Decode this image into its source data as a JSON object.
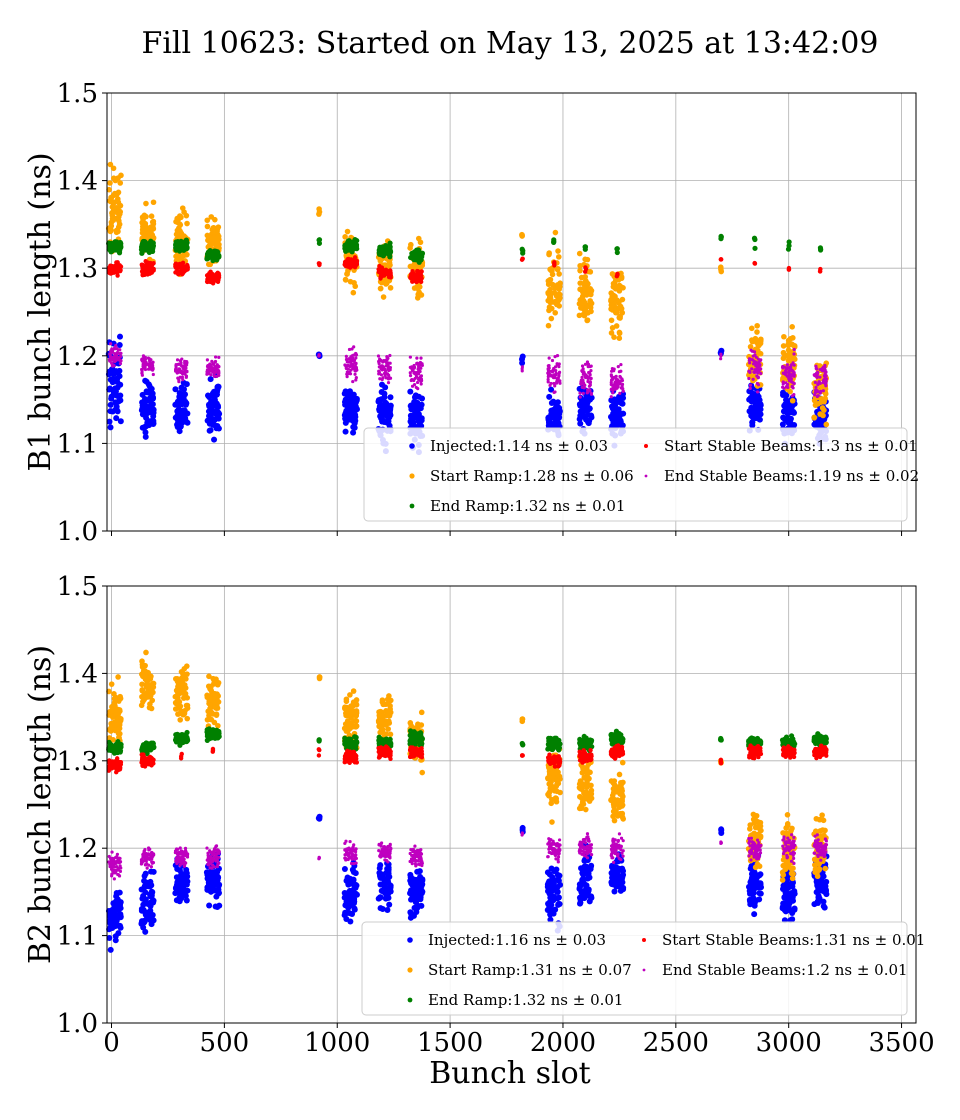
{
  "title": "Fill 10623: Started on May 13, 2025 at 13:42:09",
  "xlabel": "Bunch slot",
  "colors": {
    "injected": "#0000ff",
    "start_ramp": "#ffa500",
    "end_ramp": "#008000",
    "start_stable": "#ff0000",
    "end_stable": "#bf00bf",
    "grid": "#b0b0b0",
    "axis": "#000000"
  },
  "chart_data": [
    {
      "type": "scatter",
      "ylabel": "B1 bunch length (ns)",
      "xlim": [
        -20,
        3564
      ],
      "ylim": [
        1.0,
        1.5
      ],
      "xticks": [
        0,
        500,
        1000,
        1500,
        2000,
        2500,
        3000,
        3500
      ],
      "yticks": [
        1.0,
        1.1,
        1.2,
        1.3,
        1.4,
        1.5
      ],
      "show_xtick_labels": false,
      "grid": true,
      "legend_position": "lower right",
      "series": [
        {
          "name": "Injected",
          "legend": "Injected:1.14 ns ± 0.03",
          "key": "injected",
          "size": 3.0,
          "groups": [
            [
              15,
              1.17,
              0.05
            ],
            [
              160,
              1.14,
              0.03
            ],
            [
              310,
              1.14,
              0.03
            ],
            [
              450,
              1.14,
              0.03
            ],
            [
              920,
              1.2,
              0.005
            ],
            [
              1060,
              1.14,
              0.025
            ],
            [
              1210,
              1.13,
              0.03
            ],
            [
              1350,
              1.13,
              0.03
            ],
            [
              1820,
              1.195,
              0.005
            ],
            [
              1960,
              1.13,
              0.025
            ],
            [
              2100,
              1.14,
              0.025
            ],
            [
              2240,
              1.13,
              0.025
            ],
            [
              2700,
              1.205,
              0.005
            ],
            [
              2850,
              1.14,
              0.025
            ],
            [
              3000,
              1.13,
              0.025
            ],
            [
              3140,
              1.13,
              0.025
            ]
          ]
        },
        {
          "name": "Start Ramp",
          "legend": "Start Ramp:1.28 ns ± 0.06",
          "key": "start_ramp",
          "size": 2.8,
          "groups": [
            [
              15,
              1.37,
              0.04
            ],
            [
              160,
              1.34,
              0.03
            ],
            [
              310,
              1.33,
              0.03
            ],
            [
              450,
              1.33,
              0.025
            ],
            [
              920,
              1.365,
              0.005
            ],
            [
              1060,
              1.31,
              0.025
            ],
            [
              1210,
              1.3,
              0.025
            ],
            [
              1350,
              1.3,
              0.03
            ],
            [
              1820,
              1.34,
              0.005
            ],
            [
              1960,
              1.28,
              0.04
            ],
            [
              2100,
              1.27,
              0.04
            ],
            [
              2240,
              1.26,
              0.04
            ],
            [
              2700,
              1.3,
              0.005
            ],
            [
              2850,
              1.2,
              0.03
            ],
            [
              3000,
              1.19,
              0.035
            ],
            [
              3140,
              1.16,
              0.03
            ]
          ]
        },
        {
          "name": "End Ramp",
          "legend": "End Ramp:1.32 ns ± 0.01",
          "key": "end_ramp",
          "size": 2.6,
          "groups": [
            [
              15,
              1.325,
              0.006
            ],
            [
              160,
              1.325,
              0.006
            ],
            [
              310,
              1.325,
              0.006
            ],
            [
              450,
              1.315,
              0.006
            ],
            [
              920,
              1.33,
              0.003
            ],
            [
              1060,
              1.325,
              0.006
            ],
            [
              1210,
              1.32,
              0.006
            ],
            [
              1350,
              1.315,
              0.006
            ],
            [
              1820,
              1.32,
              0.003
            ],
            [
              1960,
              1.33,
              0.005
            ],
            [
              2100,
              1.325,
              0.005
            ],
            [
              2240,
              1.32,
              0.005
            ],
            [
              2700,
              1.335,
              0.003
            ],
            [
              2850,
              1.33,
              0.005
            ],
            [
              3000,
              1.325,
              0.005
            ],
            [
              3140,
              1.32,
              0.005
            ]
          ]
        },
        {
          "name": "Start Stable Beams",
          "legend": "Start Stable Beams:1.3 ns ± 0.01",
          "key": "start_stable",
          "size": 2.2,
          "groups": [
            [
              15,
              1.3,
              0.006
            ],
            [
              160,
              1.3,
              0.007
            ],
            [
              310,
              1.3,
              0.006
            ],
            [
              450,
              1.29,
              0.006
            ],
            [
              920,
              1.305,
              0.003
            ],
            [
              1060,
              1.305,
              0.006
            ],
            [
              1210,
              1.295,
              0.006
            ],
            [
              1350,
              1.29,
              0.006
            ],
            [
              1820,
              1.31,
              0.003
            ],
            [
              1960,
              1.305,
              0.005
            ],
            [
              2100,
              1.3,
              0.005
            ],
            [
              2240,
              1.29,
              0.005
            ],
            [
              2700,
              1.31,
              0.003
            ],
            [
              2850,
              1.305,
              0.005
            ],
            [
              3000,
              1.3,
              0.005
            ],
            [
              3140,
              1.295,
              0.005
            ]
          ]
        },
        {
          "name": "End Stable Beams",
          "legend": "End Stable Beams:1.19 ns ± 0.02",
          "key": "end_stable",
          "size": 1.6,
          "groups": [
            [
              15,
              1.2,
              0.01
            ],
            [
              160,
              1.19,
              0.012
            ],
            [
              310,
              1.185,
              0.012
            ],
            [
              450,
              1.185,
              0.012
            ],
            [
              920,
              1.2,
              0.003
            ],
            [
              1060,
              1.19,
              0.015
            ],
            [
              1210,
              1.185,
              0.015
            ],
            [
              1350,
              1.18,
              0.015
            ],
            [
              1820,
              1.185,
              0.003
            ],
            [
              1960,
              1.18,
              0.02
            ],
            [
              2100,
              1.175,
              0.02
            ],
            [
              2240,
              1.17,
              0.02
            ],
            [
              2700,
              1.2,
              0.003
            ],
            [
              2850,
              1.185,
              0.02
            ],
            [
              3000,
              1.18,
              0.02
            ],
            [
              3140,
              1.175,
              0.02
            ]
          ]
        }
      ]
    },
    {
      "type": "scatter",
      "ylabel": "B2 bunch length (ns)",
      "xlim": [
        -20,
        3564
      ],
      "ylim": [
        1.0,
        1.5
      ],
      "xticks": [
        0,
        500,
        1000,
        1500,
        2000,
        2500,
        3000,
        3500
      ],
      "xtick_labels": [
        "0",
        "500",
        "1000",
        "1500",
        "2000",
        "2500",
        "3000",
        "3500"
      ],
      "yticks": [
        1.0,
        1.1,
        1.2,
        1.3,
        1.4,
        1.5
      ],
      "show_xtick_labels": true,
      "grid": true,
      "legend_position": "lower right",
      "series": [
        {
          "name": "Injected",
          "legend": "Injected:1.16 ns ± 0.03",
          "key": "injected",
          "size": 3.0,
          "groups": [
            [
              15,
              1.12,
              0.03
            ],
            [
              160,
              1.14,
              0.03
            ],
            [
              310,
              1.16,
              0.025
            ],
            [
              450,
              1.16,
              0.03
            ],
            [
              920,
              1.235,
              0.003
            ],
            [
              1060,
              1.15,
              0.03
            ],
            [
              1210,
              1.16,
              0.03
            ],
            [
              1350,
              1.15,
              0.03
            ],
            [
              1820,
              1.22,
              0.004
            ],
            [
              1960,
              1.15,
              0.03
            ],
            [
              2100,
              1.16,
              0.03
            ],
            [
              2240,
              1.17,
              0.025
            ],
            [
              2700,
              1.22,
              0.003
            ],
            [
              2850,
              1.16,
              0.03
            ],
            [
              3000,
              1.15,
              0.03
            ],
            [
              3140,
              1.16,
              0.03
            ]
          ]
        },
        {
          "name": "Start Ramp",
          "legend": "Start Ramp:1.31 ns ± 0.07",
          "key": "start_ramp",
          "size": 2.8,
          "groups": [
            [
              15,
              1.35,
              0.03
            ],
            [
              160,
              1.39,
              0.03
            ],
            [
              310,
              1.38,
              0.03
            ],
            [
              450,
              1.37,
              0.03
            ],
            [
              920,
              1.395,
              0.003
            ],
            [
              1060,
              1.35,
              0.03
            ],
            [
              1210,
              1.35,
              0.025
            ],
            [
              1350,
              1.32,
              0.03
            ],
            [
              1820,
              1.345,
              0.004
            ],
            [
              1960,
              1.28,
              0.04
            ],
            [
              2100,
              1.27,
              0.03
            ],
            [
              2240,
              1.26,
              0.03
            ],
            [
              2700,
              1.3,
              0.003
            ],
            [
              2850,
              1.21,
              0.03
            ],
            [
              3000,
              1.2,
              0.03
            ],
            [
              3140,
              1.2,
              0.03
            ]
          ]
        },
        {
          "name": "End Ramp",
          "legend": "End Ramp:1.32 ns ± 0.01",
          "key": "end_ramp",
          "size": 2.6,
          "groups": [
            [
              15,
              1.315,
              0.006
            ],
            [
              160,
              1.315,
              0.006
            ],
            [
              310,
              1.325,
              0.006
            ],
            [
              450,
              1.33,
              0.006
            ],
            [
              920,
              1.325,
              0.003
            ],
            [
              1060,
              1.32,
              0.006
            ],
            [
              1210,
              1.32,
              0.006
            ],
            [
              1350,
              1.325,
              0.008
            ],
            [
              1820,
              1.32,
              0.003
            ],
            [
              1960,
              1.32,
              0.006
            ],
            [
              2100,
              1.32,
              0.006
            ],
            [
              2240,
              1.325,
              0.006
            ],
            [
              2700,
              1.325,
              0.003
            ],
            [
              2850,
              1.32,
              0.006
            ],
            [
              3000,
              1.32,
              0.006
            ],
            [
              3140,
              1.325,
              0.006
            ]
          ]
        },
        {
          "name": "Start Stable Beams",
          "legend": "Start Stable Beams:1.31 ns ± 0.01",
          "key": "start_stable",
          "size": 2.2,
          "groups": [
            [
              15,
              1.295,
              0.006
            ],
            [
              160,
              1.3,
              0.006
            ],
            [
              310,
              1.305,
              0.005
            ],
            [
              450,
              1.31,
              0.005
            ],
            [
              920,
              1.31,
              0.003
            ],
            [
              1060,
              1.305,
              0.006
            ],
            [
              1210,
              1.31,
              0.006
            ],
            [
              1350,
              1.31,
              0.006
            ],
            [
              1820,
              1.305,
              0.003
            ],
            [
              1960,
              1.3,
              0.006
            ],
            [
              2100,
              1.305,
              0.006
            ],
            [
              2240,
              1.31,
              0.006
            ],
            [
              2700,
              1.3,
              0.003
            ],
            [
              2850,
              1.31,
              0.006
            ],
            [
              3000,
              1.31,
              0.006
            ],
            [
              3140,
              1.31,
              0.006
            ]
          ]
        },
        {
          "name": "End Stable Beams",
          "legend": "End Stable Beams:1.2 ns ± 0.01",
          "key": "end_stable",
          "size": 1.6,
          "groups": [
            [
              15,
              1.18,
              0.015
            ],
            [
              160,
              1.19,
              0.012
            ],
            [
              310,
              1.19,
              0.012
            ],
            [
              450,
              1.19,
              0.012
            ],
            [
              920,
              1.19,
              0.003
            ],
            [
              1060,
              1.195,
              0.012
            ],
            [
              1210,
              1.195,
              0.012
            ],
            [
              1350,
              1.19,
              0.012
            ],
            [
              1820,
              1.215,
              0.003
            ],
            [
              1960,
              1.2,
              0.012
            ],
            [
              2100,
              1.2,
              0.012
            ],
            [
              2240,
              1.2,
              0.012
            ],
            [
              2700,
              1.205,
              0.003
            ],
            [
              2850,
              1.2,
              0.012
            ],
            [
              3000,
              1.2,
              0.012
            ],
            [
              3140,
              1.2,
              0.012
            ]
          ]
        }
      ]
    }
  ]
}
